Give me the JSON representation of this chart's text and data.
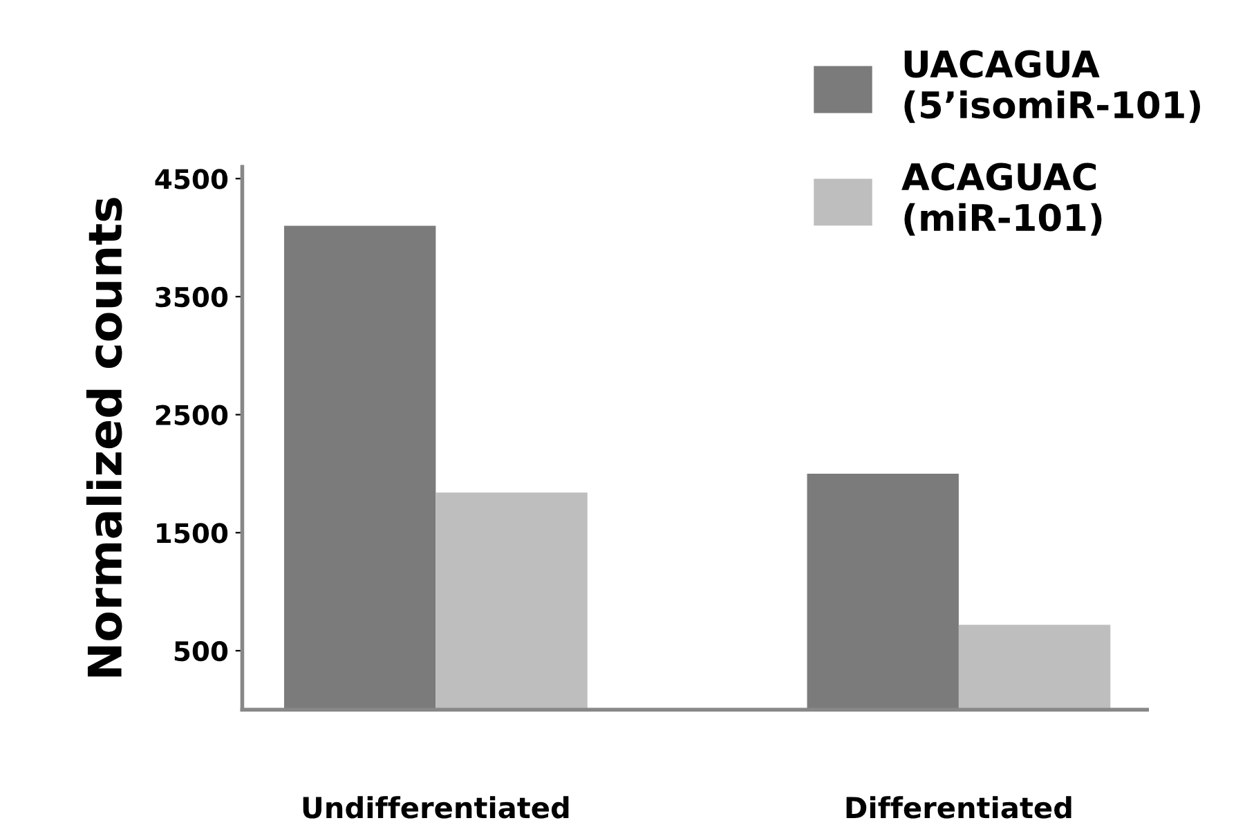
{
  "chart_data": {
    "type": "bar",
    "ylabel": "Normalized counts",
    "categories": [
      "Undifferentiated",
      "Differentiated"
    ],
    "series": [
      {
        "name": "UACAGUA\n(5’isomiR-101)",
        "color": "#7b7b7b",
        "values": [
          4100,
          2000
        ]
      },
      {
        "name": "ACAGUAC\n(miR-101)",
        "color": "#bebebe",
        "values": [
          1840,
          720
        ]
      }
    ],
    "ylim": [
      0,
      4600
    ],
    "yticks": [
      500,
      1500,
      2500,
      3500,
      4500
    ],
    "grid": false,
    "legend": "top right"
  }
}
